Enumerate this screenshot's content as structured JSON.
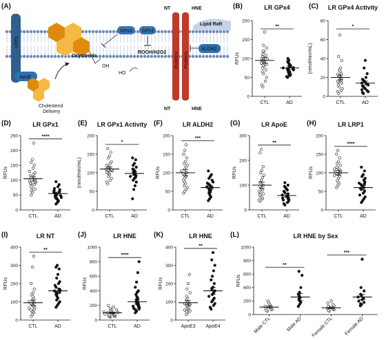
{
  "diagram": {
    "panel_label": "(A)",
    "labels": {
      "lrp1": "LRP1",
      "apoe": "ApoE",
      "oxysterols": "Oxysterols",
      "oh": "OH",
      "ho": "HO",
      "cholesterol": "Cholesterol\nDelivery",
      "gpx4": "GPx4",
      "gpx1": "GPx1",
      "rooh": "ROOH/H2O2",
      "aldh2": "ALDH2",
      "lipid_raft": "Lipid Raft",
      "proteins1": "Proteins",
      "proteins2": "Proteins",
      "nt_top": "NT",
      "hne_top": "HNE",
      "nt_bottom": "NT",
      "hne_bottom": "HNE"
    },
    "colors": {
      "lrp1": "#2f5f8f",
      "apoe": "#2f6fb0",
      "gpx": "#3a74b5",
      "protein": "#c0392b",
      "hex_dark": "#e08a0c",
      "hex_light": "#f4b942"
    }
  },
  "chart_data": [
    {
      "panel": "(B)",
      "title": "LR GPx4",
      "type": "scatter",
      "ylabel": "RFUs",
      "ylim": [
        0,
        200
      ],
      "yticks": [
        0,
        50,
        100,
        150,
        200
      ],
      "categories": [
        "CTL",
        "AD"
      ],
      "significance": "**",
      "groups": [
        {
          "name": "CTL",
          "fill": "open",
          "mean": 95,
          "sem": 8,
          "values": [
            170,
            135,
            128,
            120,
            118,
            112,
            108,
            105,
            102,
            100,
            98,
            96,
            95,
            93,
            90,
            88,
            85,
            82,
            80,
            75,
            70,
            65,
            60,
            50,
            40,
            30,
            25
          ]
        },
        {
          "name": "AD",
          "fill": "filled",
          "mean": 75,
          "sem": 5,
          "values": [
            100,
            95,
            92,
            88,
            85,
            82,
            80,
            78,
            76,
            75,
            74,
            73,
            72,
            70,
            68,
            66,
            64,
            62,
            60,
            58,
            56,
            55,
            52,
            50
          ]
        }
      ]
    },
    {
      "panel": "(C)",
      "title": "LR GPx4 Activity",
      "type": "scatter",
      "ylabel": "(nmol/min/mL)",
      "ylim": [
        0,
        80
      ],
      "yticks": [
        0,
        20,
        40,
        60,
        80
      ],
      "categories": [
        "CTL",
        "AD"
      ],
      "significance": "*",
      "groups": [
        {
          "name": "CTL",
          "fill": "open",
          "mean": 20,
          "sem": 2.5,
          "values": [
            65,
            42,
            38,
            30,
            28,
            26,
            24,
            23,
            22,
            21,
            20,
            19,
            18,
            17,
            16,
            15,
            14,
            12,
            10,
            8,
            6,
            5,
            3
          ]
        },
        {
          "name": "AD",
          "fill": "filled",
          "mean": 14,
          "sem": 2,
          "values": [
            38,
            30,
            24,
            20,
            18,
            17,
            16,
            15,
            14,
            13,
            12,
            11,
            10,
            9,
            8,
            7,
            6,
            5,
            4,
            3
          ]
        }
      ]
    },
    {
      "panel": "(D)",
      "title": "LR GPx1",
      "type": "scatter",
      "ylabel": "RFUs",
      "ylim": [
        0,
        250
      ],
      "yticks": [
        0,
        50,
        100,
        150,
        200,
        250
      ],
      "categories": [
        "CTL",
        "AD"
      ],
      "significance": "****",
      "groups": [
        {
          "name": "CTL",
          "fill": "open",
          "mean": 105,
          "sem": 8,
          "values": [
            225,
            170,
            160,
            150,
            140,
            130,
            125,
            120,
            115,
            110,
            105,
            100,
            98,
            95,
            92,
            90,
            88,
            85,
            80,
            75,
            70,
            65,
            60,
            50
          ]
        },
        {
          "name": "AD",
          "fill": "filled",
          "mean": 55,
          "sem": 5,
          "values": [
            95,
            85,
            78,
            72,
            68,
            65,
            62,
            60,
            58,
            55,
            52,
            50,
            48,
            46,
            44,
            42,
            40,
            38,
            35,
            30,
            25,
            20
          ]
        }
      ]
    },
    {
      "panel": "(E)",
      "title": "LR GPx1 Activity",
      "type": "scatter",
      "ylabel": "(nmol/min/mL)",
      "ylim": [
        0,
        200
      ],
      "yticks": [
        0,
        50,
        100,
        150,
        200
      ],
      "categories": [
        "CTL",
        "AD"
      ],
      "significance": "*",
      "groups": [
        {
          "name": "CTL",
          "fill": "open",
          "mean": 110,
          "sem": 6,
          "values": [
            165,
            155,
            145,
            140,
            130,
            125,
            120,
            118,
            115,
            112,
            110,
            108,
            105,
            102,
            100,
            98,
            95,
            90,
            85,
            80,
            75,
            70
          ]
        },
        {
          "name": "AD",
          "fill": "filled",
          "mean": 98,
          "sem": 5,
          "values": [
            140,
            135,
            125,
            120,
            115,
            110,
            108,
            105,
            102,
            100,
            98,
            96,
            94,
            92,
            90,
            88,
            85,
            80,
            75,
            65,
            55,
            30
          ]
        }
      ]
    },
    {
      "panel": "(F)",
      "title": "LR ALDH2",
      "type": "scatter",
      "ylabel": "RFUs",
      "ylim": [
        0,
        200
      ],
      "yticks": [
        0,
        50,
        100,
        150,
        200
      ],
      "categories": [
        "CTL",
        "AD"
      ],
      "significance": "***",
      "groups": [
        {
          "name": "CTL",
          "fill": "open",
          "mean": 100,
          "sem": 8,
          "values": [
            175,
            160,
            150,
            140,
            130,
            125,
            120,
            115,
            110,
            105,
            100,
            98,
            95,
            92,
            90,
            85,
            80,
            75,
            70,
            65,
            60,
            55,
            50,
            45
          ]
        },
        {
          "name": "AD",
          "fill": "filled",
          "mean": 60,
          "sem": 5,
          "values": [
            105,
            95,
            90,
            85,
            80,
            75,
            72,
            70,
            68,
            65,
            62,
            60,
            58,
            55,
            52,
            50,
            48,
            45,
            40,
            35,
            30,
            25
          ]
        }
      ]
    },
    {
      "panel": "(G)",
      "title": "LR ApoE",
      "type": "scatter",
      "ylabel": "RFUs",
      "ylim": [
        0,
        300
      ],
      "yticks": [
        0,
        100,
        200,
        300
      ],
      "categories": [
        "CTL",
        "AD"
      ],
      "significance": "**",
      "groups": [
        {
          "name": "CTL",
          "fill": "open",
          "mean": 100,
          "sem": 12,
          "values": [
            245,
            230,
            175,
            160,
            150,
            140,
            130,
            120,
            110,
            100,
            95,
            90,
            85,
            80,
            75,
            70,
            65,
            60,
            55,
            50,
            45,
            40,
            35
          ]
        },
        {
          "name": "AD",
          "fill": "filled",
          "mean": 58,
          "sem": 6,
          "values": [
            110,
            100,
            95,
            90,
            85,
            80,
            75,
            70,
            65,
            60,
            58,
            55,
            52,
            50,
            48,
            45,
            42,
            40,
            35,
            30,
            25,
            20
          ]
        }
      ]
    },
    {
      "panel": "(H)",
      "title": "LR LRP1",
      "type": "scatter",
      "ylabel": "RFUs",
      "ylim": [
        0,
        200
      ],
      "yticks": [
        0,
        50,
        100,
        150,
        200
      ],
      "categories": [
        "CTL",
        "AD"
      ],
      "significance": "****",
      "groups": [
        {
          "name": "CTL",
          "fill": "open",
          "mean": 100,
          "sem": 6,
          "values": [
            160,
            150,
            140,
            130,
            125,
            120,
            115,
            112,
            110,
            108,
            105,
            102,
            100,
            98,
            95,
            92,
            90,
            85,
            80,
            75,
            70,
            65,
            60
          ]
        },
        {
          "name": "AD",
          "fill": "filled",
          "mean": 60,
          "sem": 6,
          "values": [
            115,
            105,
            95,
            90,
            85,
            80,
            75,
            72,
            70,
            68,
            65,
            62,
            60,
            58,
            55,
            50,
            45,
            40,
            35,
            30,
            25,
            20
          ]
        }
      ]
    },
    {
      "panel": "(I)",
      "title": "LR NT",
      "type": "scatter",
      "ylabel": "RFUs",
      "ylim": [
        0,
        400
      ],
      "yticks": [
        0,
        100,
        200,
        300,
        400
      ],
      "categories": [
        "CTL",
        "AD"
      ],
      "significance": "**",
      "groups": [
        {
          "name": "CTL",
          "fill": "open",
          "mean": 95,
          "sem": 14,
          "values": [
            350,
            290,
            200,
            170,
            150,
            140,
            130,
            120,
            110,
            100,
            95,
            90,
            85,
            80,
            75,
            70,
            65,
            60,
            55,
            50,
            45,
            40,
            30,
            20
          ]
        },
        {
          "name": "AD",
          "fill": "filled",
          "mean": 160,
          "sem": 14,
          "values": [
            300,
            290,
            280,
            250,
            230,
            210,
            200,
            190,
            180,
            170,
            165,
            160,
            155,
            150,
            145,
            140,
            130,
            120,
            110,
            100,
            90,
            80,
            70
          ]
        }
      ]
    },
    {
      "panel": "(J)",
      "title": "LR HNE",
      "type": "scatter",
      "ylabel": "RFUs",
      "ylim": [
        0,
        1000
      ],
      "yticks": [
        0,
        200,
        400,
        600,
        800,
        1000
      ],
      "categories": [
        "CTL",
        "AD"
      ],
      "significance": "****",
      "groups": [
        {
          "name": "CTL",
          "fill": "open",
          "mean": 100,
          "sem": 10,
          "values": [
            200,
            180,
            160,
            150,
            140,
            130,
            120,
            110,
            105,
            100,
            95,
            90,
            85,
            80,
            75,
            70,
            65,
            60,
            55,
            50,
            45,
            40
          ]
        },
        {
          "name": "AD",
          "fill": "filled",
          "mean": 250,
          "sem": 30,
          "values": [
            800,
            650,
            520,
            450,
            400,
            380,
            350,
            320,
            300,
            280,
            260,
            250,
            240,
            230,
            220,
            210,
            200,
            190,
            180,
            170,
            160,
            150,
            140,
            120,
            100
          ]
        }
      ]
    },
    {
      "panel": "(K)",
      "title": "LR HNE",
      "type": "scatter",
      "ylabel": "RFUs",
      "ylim": [
        0,
        400
      ],
      "yticks": [
        0,
        100,
        200,
        300,
        400
      ],
      "categories": [
        "ApoE3",
        "ApoE4"
      ],
      "significance": "**",
      "groups": [
        {
          "name": "ApoE3",
          "fill": "open",
          "mean": 95,
          "sem": 12,
          "values": [
            250,
            200,
            170,
            150,
            130,
            120,
            110,
            100,
            95,
            90,
            85,
            80,
            75,
            70,
            65,
            60,
            55,
            50,
            45,
            40,
            30
          ]
        },
        {
          "name": "ApoE4",
          "fill": "filled",
          "mean": 160,
          "sem": 18,
          "values": [
            370,
            330,
            300,
            270,
            240,
            220,
            200,
            180,
            170,
            160,
            150,
            140,
            130,
            120,
            110,
            100,
            90,
            80,
            70,
            60
          ]
        }
      ]
    },
    {
      "panel": "(L)",
      "title": "LR HNE by Sex",
      "type": "scatter",
      "ylabel": "RFUs",
      "ylim": [
        0,
        1000
      ],
      "yticks": [
        0,
        200,
        400,
        600,
        800,
        1000
      ],
      "categories": [
        "Male CTL",
        "Male AD",
        "Female CTL",
        "Female AD"
      ],
      "significance": [
        "**",
        "***"
      ],
      "groups": [
        {
          "name": "Male CTL",
          "fill": "open",
          "mean": 110,
          "sem": 15,
          "values": [
            200,
            170,
            150,
            130,
            120,
            110,
            100,
            90,
            80,
            70,
            60,
            50
          ]
        },
        {
          "name": "Male AD",
          "fill": "filled",
          "mean": 260,
          "sem": 50,
          "values": [
            640,
            580,
            400,
            330,
            300,
            270,
            250,
            230,
            200,
            180,
            150,
            120
          ]
        },
        {
          "name": "Female CTL",
          "fill": "open",
          "mean": 100,
          "sem": 12,
          "values": [
            200,
            170,
            150,
            130,
            120,
            110,
            100,
            95,
            90,
            80,
            70,
            60,
            50
          ]
        },
        {
          "name": "Female AD",
          "fill": "filled",
          "mean": 260,
          "sem": 40,
          "values": [
            820,
            400,
            350,
            300,
            280,
            260,
            240,
            220,
            200,
            180,
            160,
            150,
            130
          ]
        }
      ]
    }
  ]
}
